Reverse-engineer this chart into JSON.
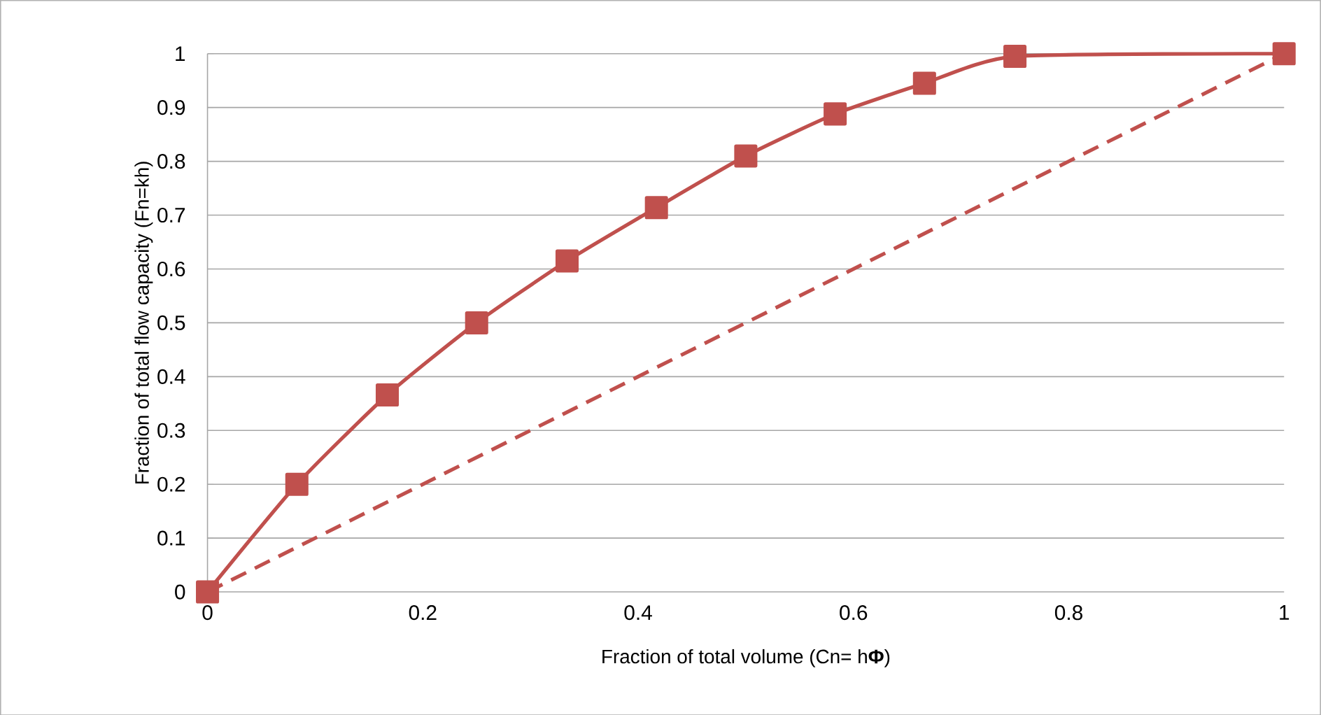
{
  "chart_data": {
    "type": "line",
    "xlabel": "Fraction of total volume (Cn= h**Φ**)",
    "ylabel": "Fraction of total flow capacity (Fn=kh)",
    "xlim": [
      0,
      1
    ],
    "ylim": [
      0,
      1
    ],
    "xticks": [
      0,
      0.2,
      0.4,
      0.6,
      0.8,
      1
    ],
    "yticks": [
      0,
      0.1,
      0.2,
      0.3,
      0.4,
      0.5,
      0.6,
      0.7,
      0.8,
      0.9,
      1
    ],
    "grid": "y",
    "series": [
      {
        "color": "#c0504d",
        "marker": "square",
        "line_style": "solid",
        "x": [
          0,
          0.083,
          0.167,
          0.25,
          0.334,
          0.417,
          0.5,
          0.583,
          0.666,
          0.75,
          1
        ],
        "values": [
          0,
          0.2,
          0.366,
          0.5,
          0.615,
          0.714,
          0.81,
          0.888,
          0.945,
          0.995,
          1
        ]
      },
      {
        "color": "#c0504d",
        "marker": "none",
        "line_style": "dashed",
        "x": [
          0,
          1
        ],
        "values": [
          0,
          1
        ]
      }
    ]
  }
}
